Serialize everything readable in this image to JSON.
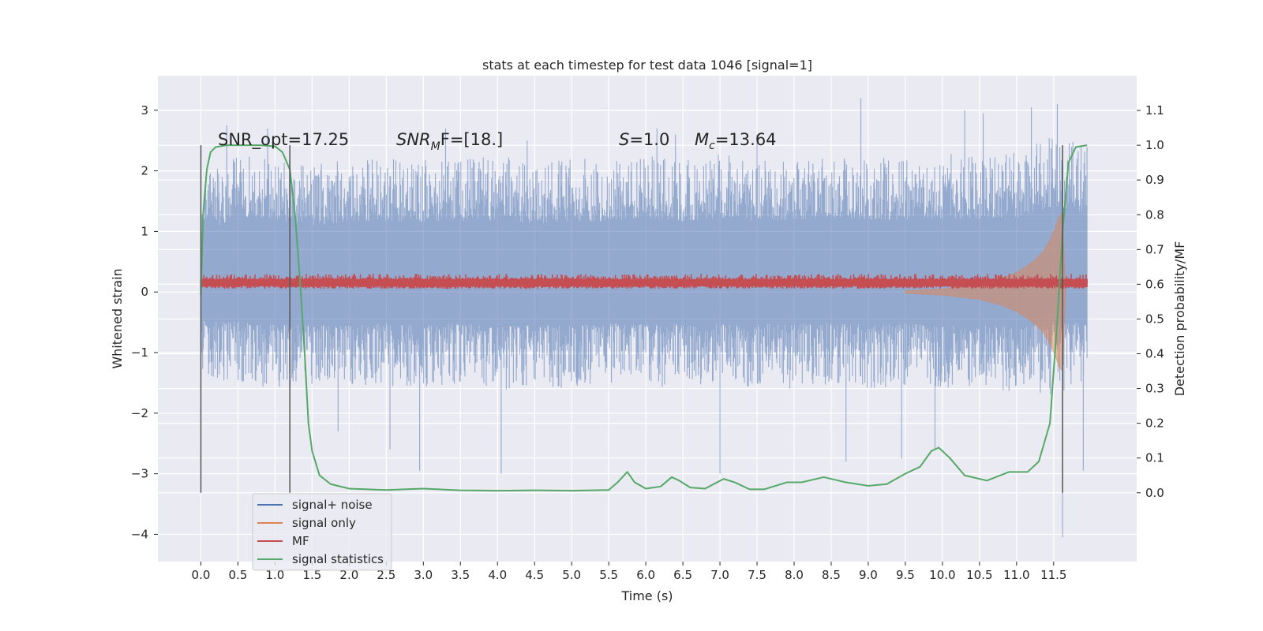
{
  "chart_data": {
    "type": "line",
    "title": "stats at each timestep for test data 1046 [signal=1]",
    "xlabel": "Time (s)",
    "ylabel": "Whitened strain",
    "y2label": "Detection probability/MF",
    "xlim": [
      -0.58,
      12.62
    ],
    "ylim": [
      -4.45,
      3.57
    ],
    "y2lim": [
      -0.198,
      1.2
    ],
    "x_ticks": [
      0.0,
      0.5,
      1.0,
      1.5,
      2.0,
      2.5,
      3.0,
      3.5,
      4.0,
      4.5,
      5.0,
      5.5,
      6.0,
      6.5,
      7.0,
      7.5,
      8.0,
      8.5,
      9.0,
      9.5,
      10.0,
      10.5,
      11.0,
      11.5
    ],
    "x_tick_labels": [
      "0.0",
      "0.5",
      "1.0",
      "1.5",
      "2.0",
      "2.5",
      "3.0",
      "3.5",
      "4.0",
      "4.5",
      "5.0",
      "5.5",
      "6.0",
      "6.5",
      "7.0",
      "7.5",
      "8.0",
      "8.5",
      "9.0",
      "9.5",
      "10.0",
      "10.5",
      "11.0",
      "11.5"
    ],
    "y_ticks": [
      3,
      2,
      1,
      0,
      -1,
      -2,
      -3,
      -4
    ],
    "y_tick_labels": [
      "3",
      "2",
      "1",
      "0",
      "−1",
      "−2",
      "−3",
      "−4"
    ],
    "y2_ticks": [
      1.1,
      1.0,
      0.9,
      0.8,
      0.7,
      0.6,
      0.5,
      0.4,
      0.3,
      0.2,
      0.1,
      0.0
    ],
    "y2_tick_labels": [
      "1.1",
      "1.0",
      "0.9",
      "0.8",
      "0.7",
      "0.6",
      "0.5",
      "0.4",
      "0.3",
      "0.2",
      "0.1",
      "0.0"
    ],
    "grid": true,
    "legend_position": "lower-left",
    "annotations": {
      "snr_opt": "SNR_opt=17.25",
      "snr_mf_sym": "SNR",
      "snr_mf_sub": "M",
      "snr_mf_tail": "F=[18.]",
      "s_sym": "S",
      "s_tail": "=1.0",
      "mc_sym": "M",
      "mc_sub": "c",
      "mc_tail": "=13.64"
    },
    "vertical_markers": [
      0.0,
      1.2,
      11.62
    ],
    "series": [
      {
        "name": "signal+ noise",
        "color": "#4c72b0",
        "axis": "left",
        "kind": "noise-band",
        "band": [
          [
            0.0,
            -1.35,
            1.85
          ],
          [
            0.5,
            -1.55,
            2.3
          ],
          [
            1.0,
            -1.6,
            2.25
          ],
          [
            1.5,
            -1.55,
            2.1
          ],
          [
            2.0,
            -1.6,
            2.2
          ],
          [
            2.5,
            -1.55,
            2.2
          ],
          [
            3.0,
            -1.6,
            2.2
          ],
          [
            3.5,
            -1.55,
            2.2
          ],
          [
            4.0,
            -1.65,
            2.25
          ],
          [
            4.5,
            -1.55,
            2.15
          ],
          [
            5.0,
            -1.6,
            2.2
          ],
          [
            5.5,
            -1.55,
            2.2
          ],
          [
            6.0,
            -1.6,
            2.3
          ],
          [
            6.5,
            -1.55,
            2.2
          ],
          [
            7.0,
            -1.6,
            2.3
          ],
          [
            7.5,
            -1.55,
            2.2
          ],
          [
            8.0,
            -1.6,
            2.25
          ],
          [
            8.5,
            -1.55,
            2.3
          ],
          [
            9.0,
            -1.6,
            2.25
          ],
          [
            9.5,
            -1.55,
            2.2
          ],
          [
            10.0,
            -1.65,
            2.3
          ],
          [
            10.5,
            -1.6,
            2.25
          ],
          [
            11.0,
            -1.65,
            2.3
          ],
          [
            11.5,
            -1.7,
            2.6
          ],
          [
            11.95,
            -1.6,
            2.4
          ]
        ],
        "spikes": [
          [
            0.35,
            2.75
          ],
          [
            0.9,
            2.7
          ],
          [
            1.85,
            -2.3
          ],
          [
            2.55,
            -2.6
          ],
          [
            2.95,
            -2.95
          ],
          [
            3.3,
            2.7
          ],
          [
            4.05,
            -3.0
          ],
          [
            4.4,
            2.5
          ],
          [
            6.15,
            2.7
          ],
          [
            6.4,
            2.6
          ],
          [
            7.0,
            -3.0
          ],
          [
            7.5,
            2.6
          ],
          [
            8.7,
            -2.8
          ],
          [
            8.9,
            3.2
          ],
          [
            9.45,
            -2.75
          ],
          [
            9.9,
            -2.6
          ],
          [
            10.3,
            3.0
          ],
          [
            10.55,
            2.95
          ],
          [
            11.2,
            3.05
          ],
          [
            11.55,
            3.1
          ],
          [
            11.62,
            -4.05
          ],
          [
            11.9,
            -2.95
          ]
        ]
      },
      {
        "name": "signal only",
        "color": "#dd8452",
        "axis": "left",
        "kind": "chirp-envelope",
        "envelope": [
          [
            9.5,
            0.02
          ],
          [
            10.0,
            0.05
          ],
          [
            10.5,
            0.12
          ],
          [
            10.8,
            0.22
          ],
          [
            11.0,
            0.32
          ],
          [
            11.2,
            0.48
          ],
          [
            11.35,
            0.65
          ],
          [
            11.45,
            0.85
          ],
          [
            11.52,
            1.05
          ],
          [
            11.58,
            1.25
          ],
          [
            11.62,
            1.3
          ],
          [
            11.66,
            0.0
          ]
        ]
      },
      {
        "name": "MF",
        "color": "#c44e52",
        "axis": "right",
        "kind": "band",
        "band_lo": 0.595,
        "band_hi": 0.615
      },
      {
        "name": "signal statistics",
        "color": "#55a868",
        "axis": "right",
        "kind": "line",
        "points": [
          [
            0.0,
            0.57
          ],
          [
            0.03,
            0.8
          ],
          [
            0.08,
            0.93
          ],
          [
            0.13,
            0.98
          ],
          [
            0.2,
            0.995
          ],
          [
            0.35,
            1.0
          ],
          [
            0.8,
            1.0
          ],
          [
            1.0,
            0.997
          ],
          [
            1.1,
            0.98
          ],
          [
            1.2,
            0.93
          ],
          [
            1.27,
            0.8
          ],
          [
            1.34,
            0.6
          ],
          [
            1.4,
            0.4
          ],
          [
            1.45,
            0.2
          ],
          [
            1.5,
            0.12
          ],
          [
            1.6,
            0.05
          ],
          [
            1.75,
            0.025
          ],
          [
            2.0,
            0.012
          ],
          [
            2.5,
            0.008
          ],
          [
            3.0,
            0.012
          ],
          [
            3.5,
            0.007
          ],
          [
            4.0,
            0.006
          ],
          [
            4.5,
            0.007
          ],
          [
            5.0,
            0.006
          ],
          [
            5.5,
            0.008
          ],
          [
            5.62,
            0.03
          ],
          [
            5.75,
            0.06
          ],
          [
            5.85,
            0.03
          ],
          [
            6.0,
            0.012
          ],
          [
            6.2,
            0.018
          ],
          [
            6.35,
            0.045
          ],
          [
            6.45,
            0.035
          ],
          [
            6.6,
            0.015
          ],
          [
            6.8,
            0.012
          ],
          [
            7.05,
            0.04
          ],
          [
            7.2,
            0.03
          ],
          [
            7.4,
            0.01
          ],
          [
            7.6,
            0.01
          ],
          [
            7.9,
            0.03
          ],
          [
            8.1,
            0.03
          ],
          [
            8.4,
            0.045
          ],
          [
            8.7,
            0.03
          ],
          [
            9.0,
            0.02
          ],
          [
            9.25,
            0.025
          ],
          [
            9.5,
            0.055
          ],
          [
            9.7,
            0.075
          ],
          [
            9.85,
            0.12
          ],
          [
            9.95,
            0.13
          ],
          [
            10.1,
            0.1
          ],
          [
            10.3,
            0.05
          ],
          [
            10.6,
            0.035
          ],
          [
            10.9,
            0.06
          ],
          [
            11.15,
            0.06
          ],
          [
            11.3,
            0.09
          ],
          [
            11.45,
            0.2
          ],
          [
            11.55,
            0.5
          ],
          [
            11.62,
            0.75
          ],
          [
            11.7,
            0.95
          ],
          [
            11.8,
            0.995
          ],
          [
            11.95,
            1.0
          ]
        ]
      }
    ]
  }
}
